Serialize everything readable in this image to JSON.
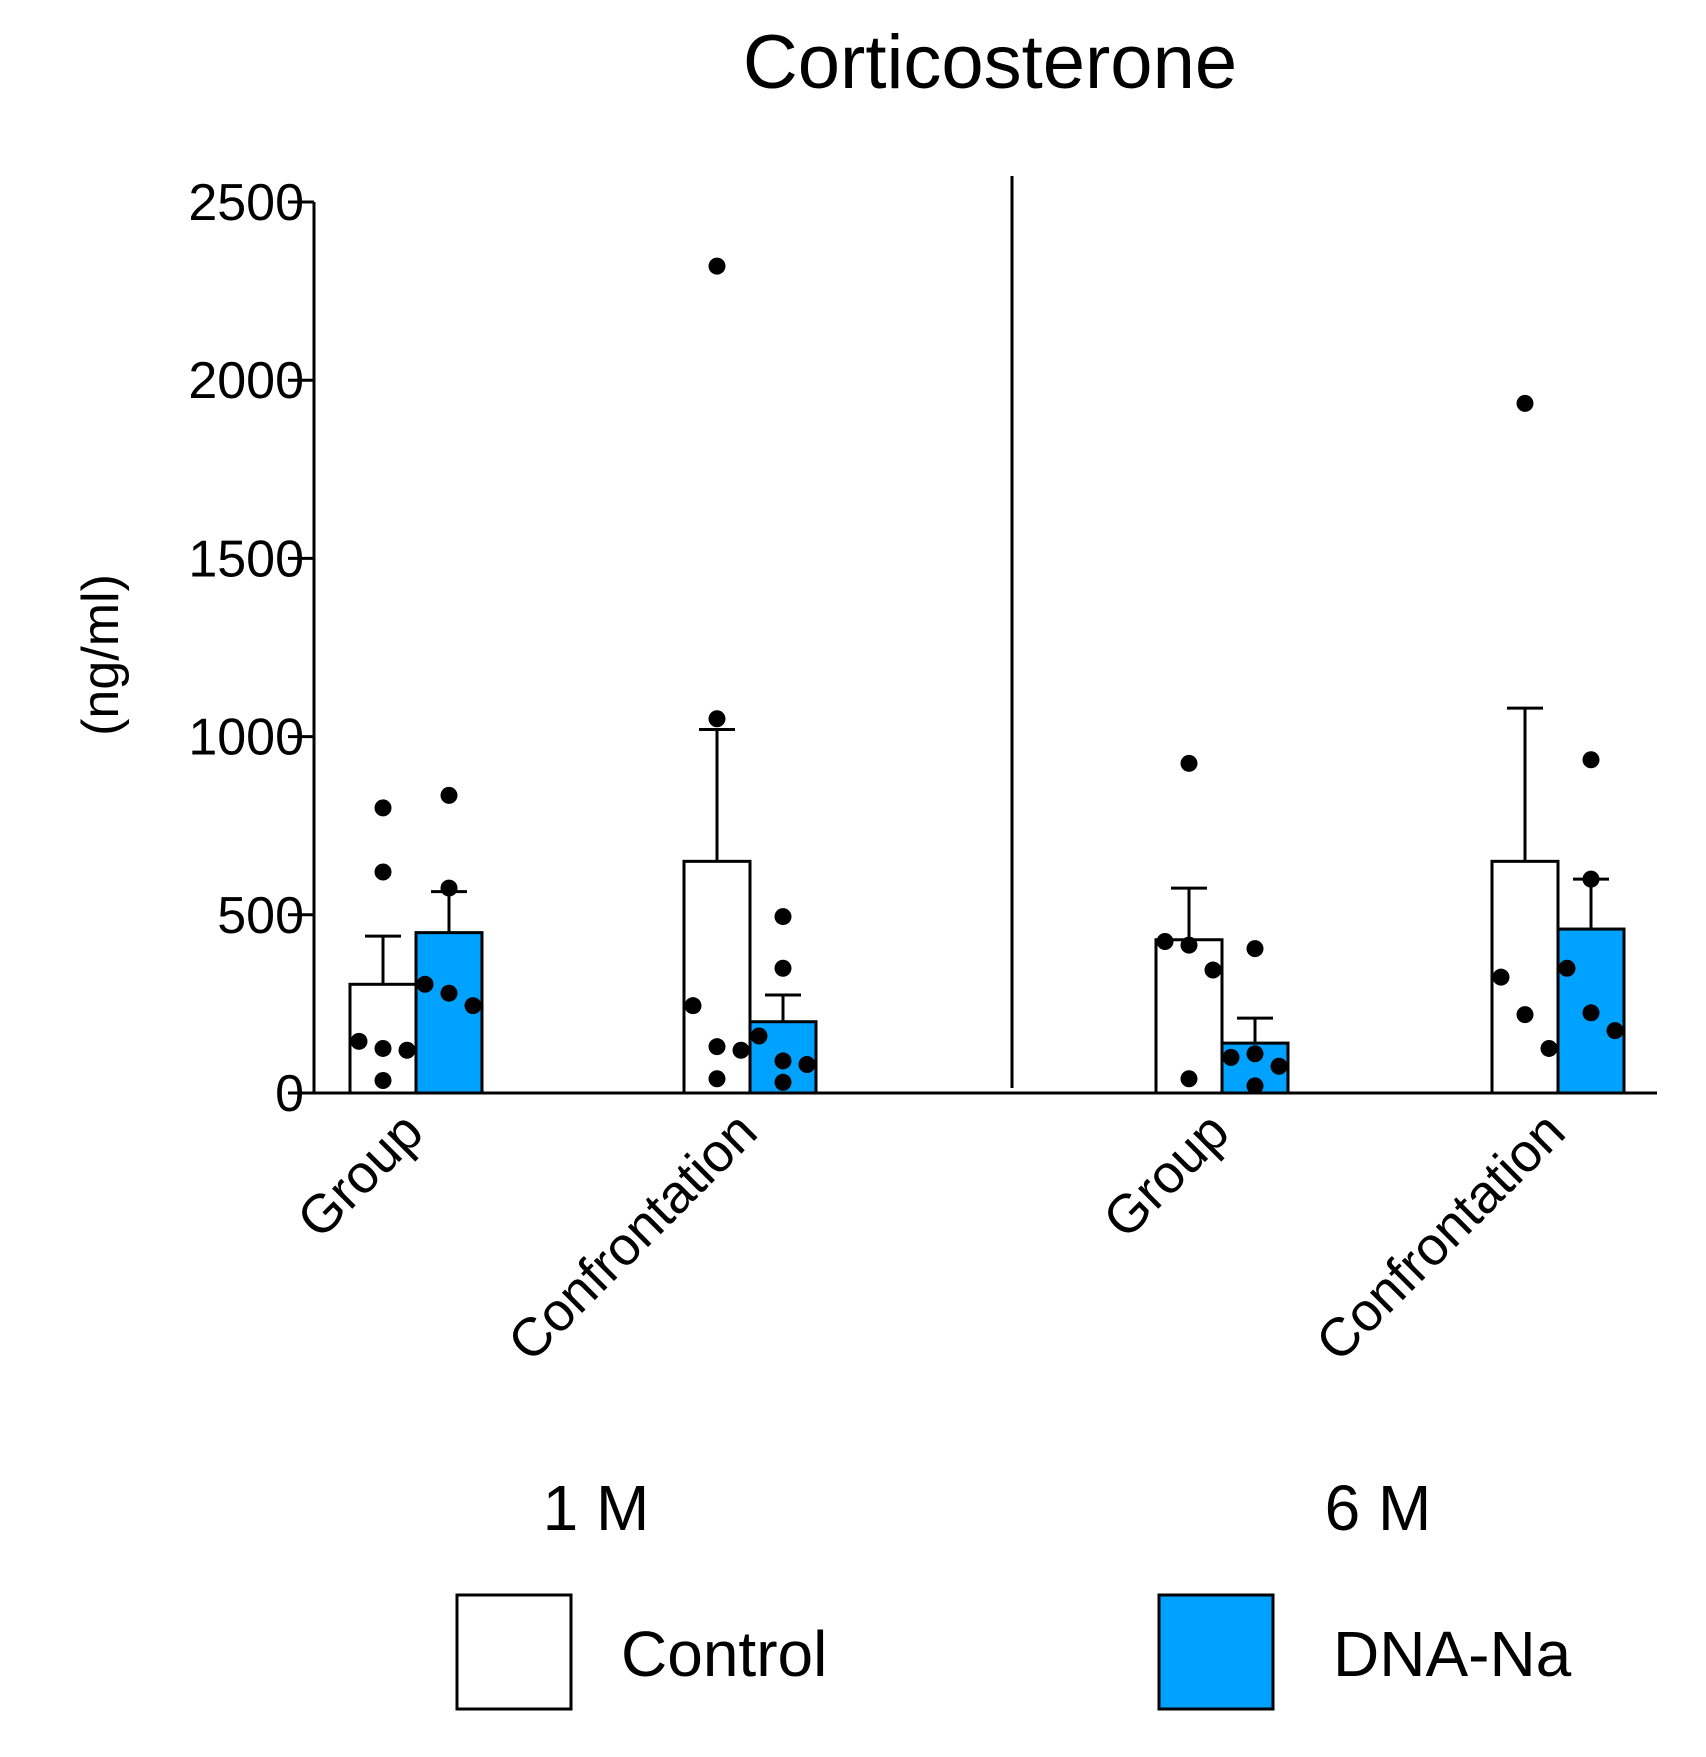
{
  "chart_data": {
    "type": "bar",
    "title": "Corticosterone",
    "ylabel": "(ng/ml)",
    "xlabel": "",
    "ylim": [
      0,
      2500
    ],
    "yticks": [
      0,
      500,
      1000,
      1500,
      2000,
      2500
    ],
    "grid": false,
    "legend_position": "bottom",
    "panels": [
      {
        "label": "1 M",
        "categories": [
          {
            "label": "Group",
            "bars": [
              {
                "series": "Control",
                "mean": 305,
                "error": 440,
                "points": [
                  800,
                  620,
                  145,
                  125,
                  120,
                  35
                ]
              },
              {
                "series": "DNA-Na",
                "mean": 450,
                "error": 565,
                "points": [
                  835,
                  575,
                  305,
                  245,
                  280
                ]
              }
            ]
          },
          {
            "label": "Confrontation",
            "bars": [
              {
                "series": "Control",
                "mean": 650,
                "error": 1020,
                "points": [
                  2320,
                  1050,
                  245,
                  130,
                  120,
                  40
                ]
              },
              {
                "series": "DNA-Na",
                "mean": 200,
                "error": 275,
                "points": [
                  495,
                  350,
                  160,
                  90,
                  80,
                  30
                ]
              }
            ]
          }
        ]
      },
      {
        "label": "6 M",
        "categories": [
          {
            "label": "Group",
            "bars": [
              {
                "series": "Control",
                "mean": 430,
                "error": 575,
                "points": [
                  925,
                  415,
                  425,
                  345,
                  40
                ]
              },
              {
                "series": "DNA-Na",
                "mean": 140,
                "error": 210,
                "points": [
                  405,
                  110,
                  100,
                  75,
                  20
                ]
              }
            ]
          },
          {
            "label": "Confrontation",
            "bars": [
              {
                "series": "Control",
                "mean": 650,
                "error": 1080,
                "points": [
                  1935,
                  325,
                  220,
                  125
                ]
              },
              {
                "series": "DNA-Na",
                "mean": 460,
                "error": 600,
                "points": [
                  935,
                  600,
                  350,
                  175,
                  225
                ]
              }
            ]
          }
        ]
      }
    ],
    "series": [
      {
        "name": "Control",
        "color": "#ffffff"
      },
      {
        "name": "DNA-Na",
        "color": "#00a2ff"
      }
    ]
  }
}
